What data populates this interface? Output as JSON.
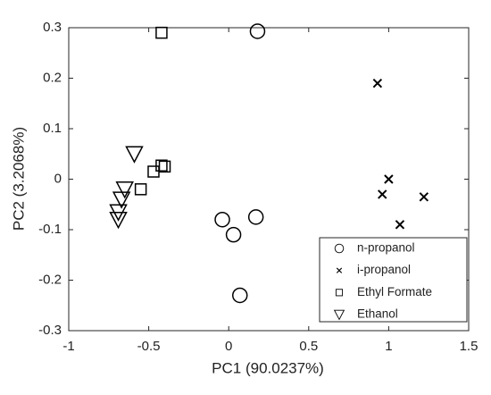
{
  "chart_data": {
    "type": "scatter",
    "xlabel": "PC1 (90.0237%)",
    "ylabel": "PC2 (3.2068%)",
    "xlim": [
      -1,
      1.5
    ],
    "xticks": [
      -1,
      -0.5,
      0,
      0.5,
      1,
      1.5
    ],
    "ylim": [
      -0.3,
      0.3
    ],
    "yticks": [
      -0.3,
      -0.2,
      -0.1,
      0,
      0.1,
      0.2,
      0.3
    ],
    "legend": "lower right",
    "series": [
      {
        "name": "n-propanol",
        "color": "#000000",
        "marker": "circle",
        "x": [
          0.18,
          -0.04,
          0.03,
          0.17,
          0.07
        ],
        "y": [
          0.293,
          -0.08,
          -0.11,
          -0.075,
          -0.23
        ]
      },
      {
        "name": "i-propanol",
        "color": "#000000",
        "marker": "x",
        "x": [
          0.93,
          1.0,
          0.96,
          1.22,
          1.07
        ],
        "y": [
          0.19,
          0.0,
          -0.03,
          -0.035,
          -0.09
        ]
      },
      {
        "name": "Ethyl Formate",
        "color": "#000000",
        "marker": "square",
        "x": [
          -0.42,
          -0.42,
          -0.4,
          -0.47,
          -0.55
        ],
        "y": [
          0.29,
          0.027,
          0.025,
          0.015,
          -0.02
        ]
      },
      {
        "name": "Ethanol",
        "color": "#000000",
        "marker": "triangle-down",
        "x": [
          -0.59,
          -0.65,
          -0.67,
          -0.69,
          -0.69
        ],
        "y": [
          0.05,
          -0.02,
          -0.04,
          -0.065,
          -0.08
        ]
      }
    ]
  }
}
